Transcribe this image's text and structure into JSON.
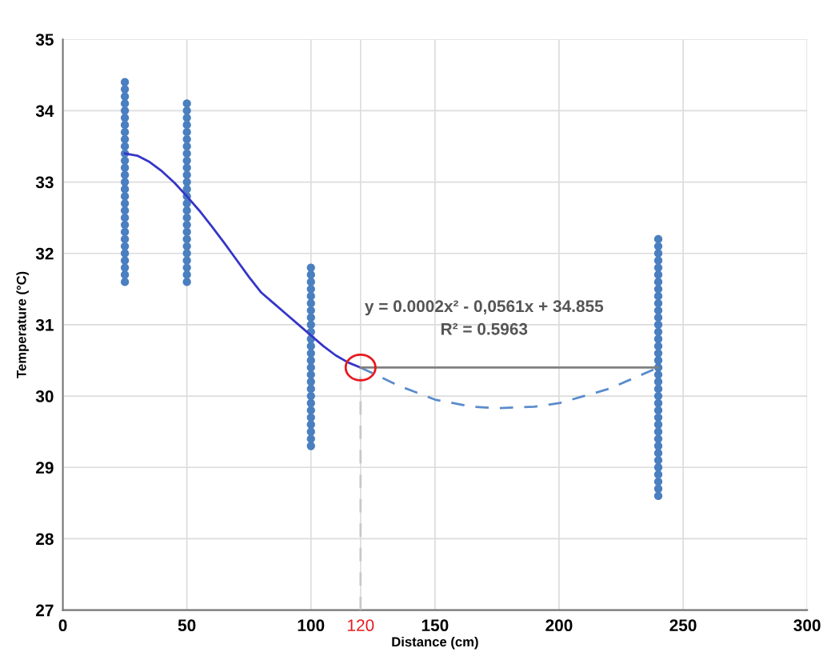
{
  "chart_data": {
    "type": "scatter",
    "xlabel": "Distance (cm)",
    "ylabel": "Temperature (°C)",
    "xlim": [
      0,
      300
    ],
    "ylim": [
      27,
      35
    ],
    "xticks": [
      0,
      50,
      100,
      {
        "value": 120,
        "label": "120"
      },
      150,
      200,
      250,
      300
    ],
    "yticks": [
      27,
      28,
      29,
      30,
      31,
      32,
      33,
      34,
      35
    ],
    "grid": true,
    "annotations": [
      "y = 0.0002x² - 0,0561x + 34.855",
      "R² = 0.5963"
    ],
    "series": [
      {
        "color": "#4a7fc0",
        "marker": "circle",
        "x": [
          25,
          25,
          25,
          25,
          25,
          25,
          25,
          25,
          25,
          25,
          25,
          25,
          25,
          25,
          25,
          25,
          25,
          25,
          25,
          25,
          25,
          25,
          25,
          25,
          25,
          25,
          25,
          25,
          25,
          50,
          50,
          50,
          50,
          50,
          50,
          50,
          50,
          50,
          50,
          50,
          50,
          50,
          50,
          50,
          50,
          50,
          50,
          50,
          50,
          50,
          50,
          50,
          50,
          50,
          50,
          100,
          100,
          100,
          100,
          100,
          100,
          100,
          100,
          100,
          100,
          100,
          100,
          100,
          100,
          100,
          100,
          100,
          100,
          100,
          100,
          100,
          100,
          100,
          100,
          100,
          100,
          240,
          240,
          240,
          240,
          240,
          240,
          240,
          240,
          240,
          240,
          240,
          240,
          240,
          240,
          240,
          240,
          240,
          240,
          240,
          240,
          240,
          240,
          240,
          240,
          240,
          240,
          240,
          240,
          240,
          240,
          240,
          240,
          240,
          240,
          240,
          240,
          240
        ],
        "values": [
          31.6,
          31.7,
          31.8,
          31.9,
          32.0,
          32.1,
          32.2,
          32.3,
          32.4,
          32.5,
          32.6,
          32.7,
          32.8,
          32.9,
          33.0,
          33.1,
          33.2,
          33.3,
          33.4,
          33.5,
          33.6,
          33.7,
          33.8,
          33.9,
          34.0,
          34.1,
          34.2,
          34.3,
          34.4,
          31.6,
          31.7,
          31.8,
          31.9,
          32.0,
          32.1,
          32.2,
          32.3,
          32.4,
          32.5,
          32.6,
          32.7,
          32.8,
          32.9,
          33.0,
          33.1,
          33.2,
          33.3,
          33.4,
          33.5,
          33.6,
          33.7,
          33.8,
          33.9,
          34.0,
          34.1,
          29.3,
          29.4,
          29.5,
          29.6,
          29.7,
          29.8,
          29.9,
          30.0,
          30.1,
          30.2,
          30.3,
          30.4,
          30.5,
          30.6,
          30.7,
          30.8,
          30.9,
          31.0,
          31.1,
          31.2,
          31.3,
          31.4,
          31.5,
          31.6,
          31.7,
          31.8,
          28.6,
          28.7,
          28.8,
          28.9,
          29.0,
          29.1,
          29.2,
          29.3,
          29.4,
          29.5,
          29.6,
          29.7,
          29.8,
          29.9,
          30.0,
          30.1,
          30.2,
          30.3,
          30.4,
          30.5,
          30.6,
          30.7,
          30.8,
          30.9,
          31.0,
          31.1,
          31.2,
          31.3,
          31.4,
          31.5,
          31.6,
          31.7,
          31.8,
          31.9,
          32.0,
          32.1,
          32.2
        ]
      },
      {
        "type": "line",
        "color": "#3535c8",
        "line_style": "solid",
        "marker": "none",
        "x": [
          25,
          30,
          35,
          40,
          45,
          50,
          55,
          60,
          65,
          70,
          75,
          80,
          85,
          90,
          95,
          100,
          105,
          110,
          115,
          120
        ],
        "values": [
          33.4,
          33.37,
          33.28,
          33.15,
          32.99,
          32.8,
          32.6,
          32.38,
          32.15,
          31.91,
          31.67,
          31.45,
          31.3,
          31.15,
          31.0,
          30.85,
          30.7,
          30.57,
          30.47,
          30.4
        ]
      },
      {
        "type": "line",
        "color": "#5a8ccc",
        "line_style": "dashed",
        "marker": "none",
        "x": [
          120,
          135,
          150,
          165,
          175,
          190,
          200,
          220,
          240
        ],
        "values": [
          30.4,
          30.15,
          29.95,
          29.85,
          29.83,
          29.85,
          29.9,
          30.1,
          30.4
        ]
      },
      {
        "type": "line",
        "color": "#808080",
        "line_style": "solid",
        "marker": "none",
        "x": [
          120,
          240
        ],
        "values": [
          30.4,
          30.4
        ]
      },
      {
        "type": "line",
        "color": "#c8c8c8",
        "line_style": "dashed",
        "marker": "none",
        "x": [
          120,
          120
        ],
        "values": [
          27,
          30.3
        ]
      }
    ]
  }
}
